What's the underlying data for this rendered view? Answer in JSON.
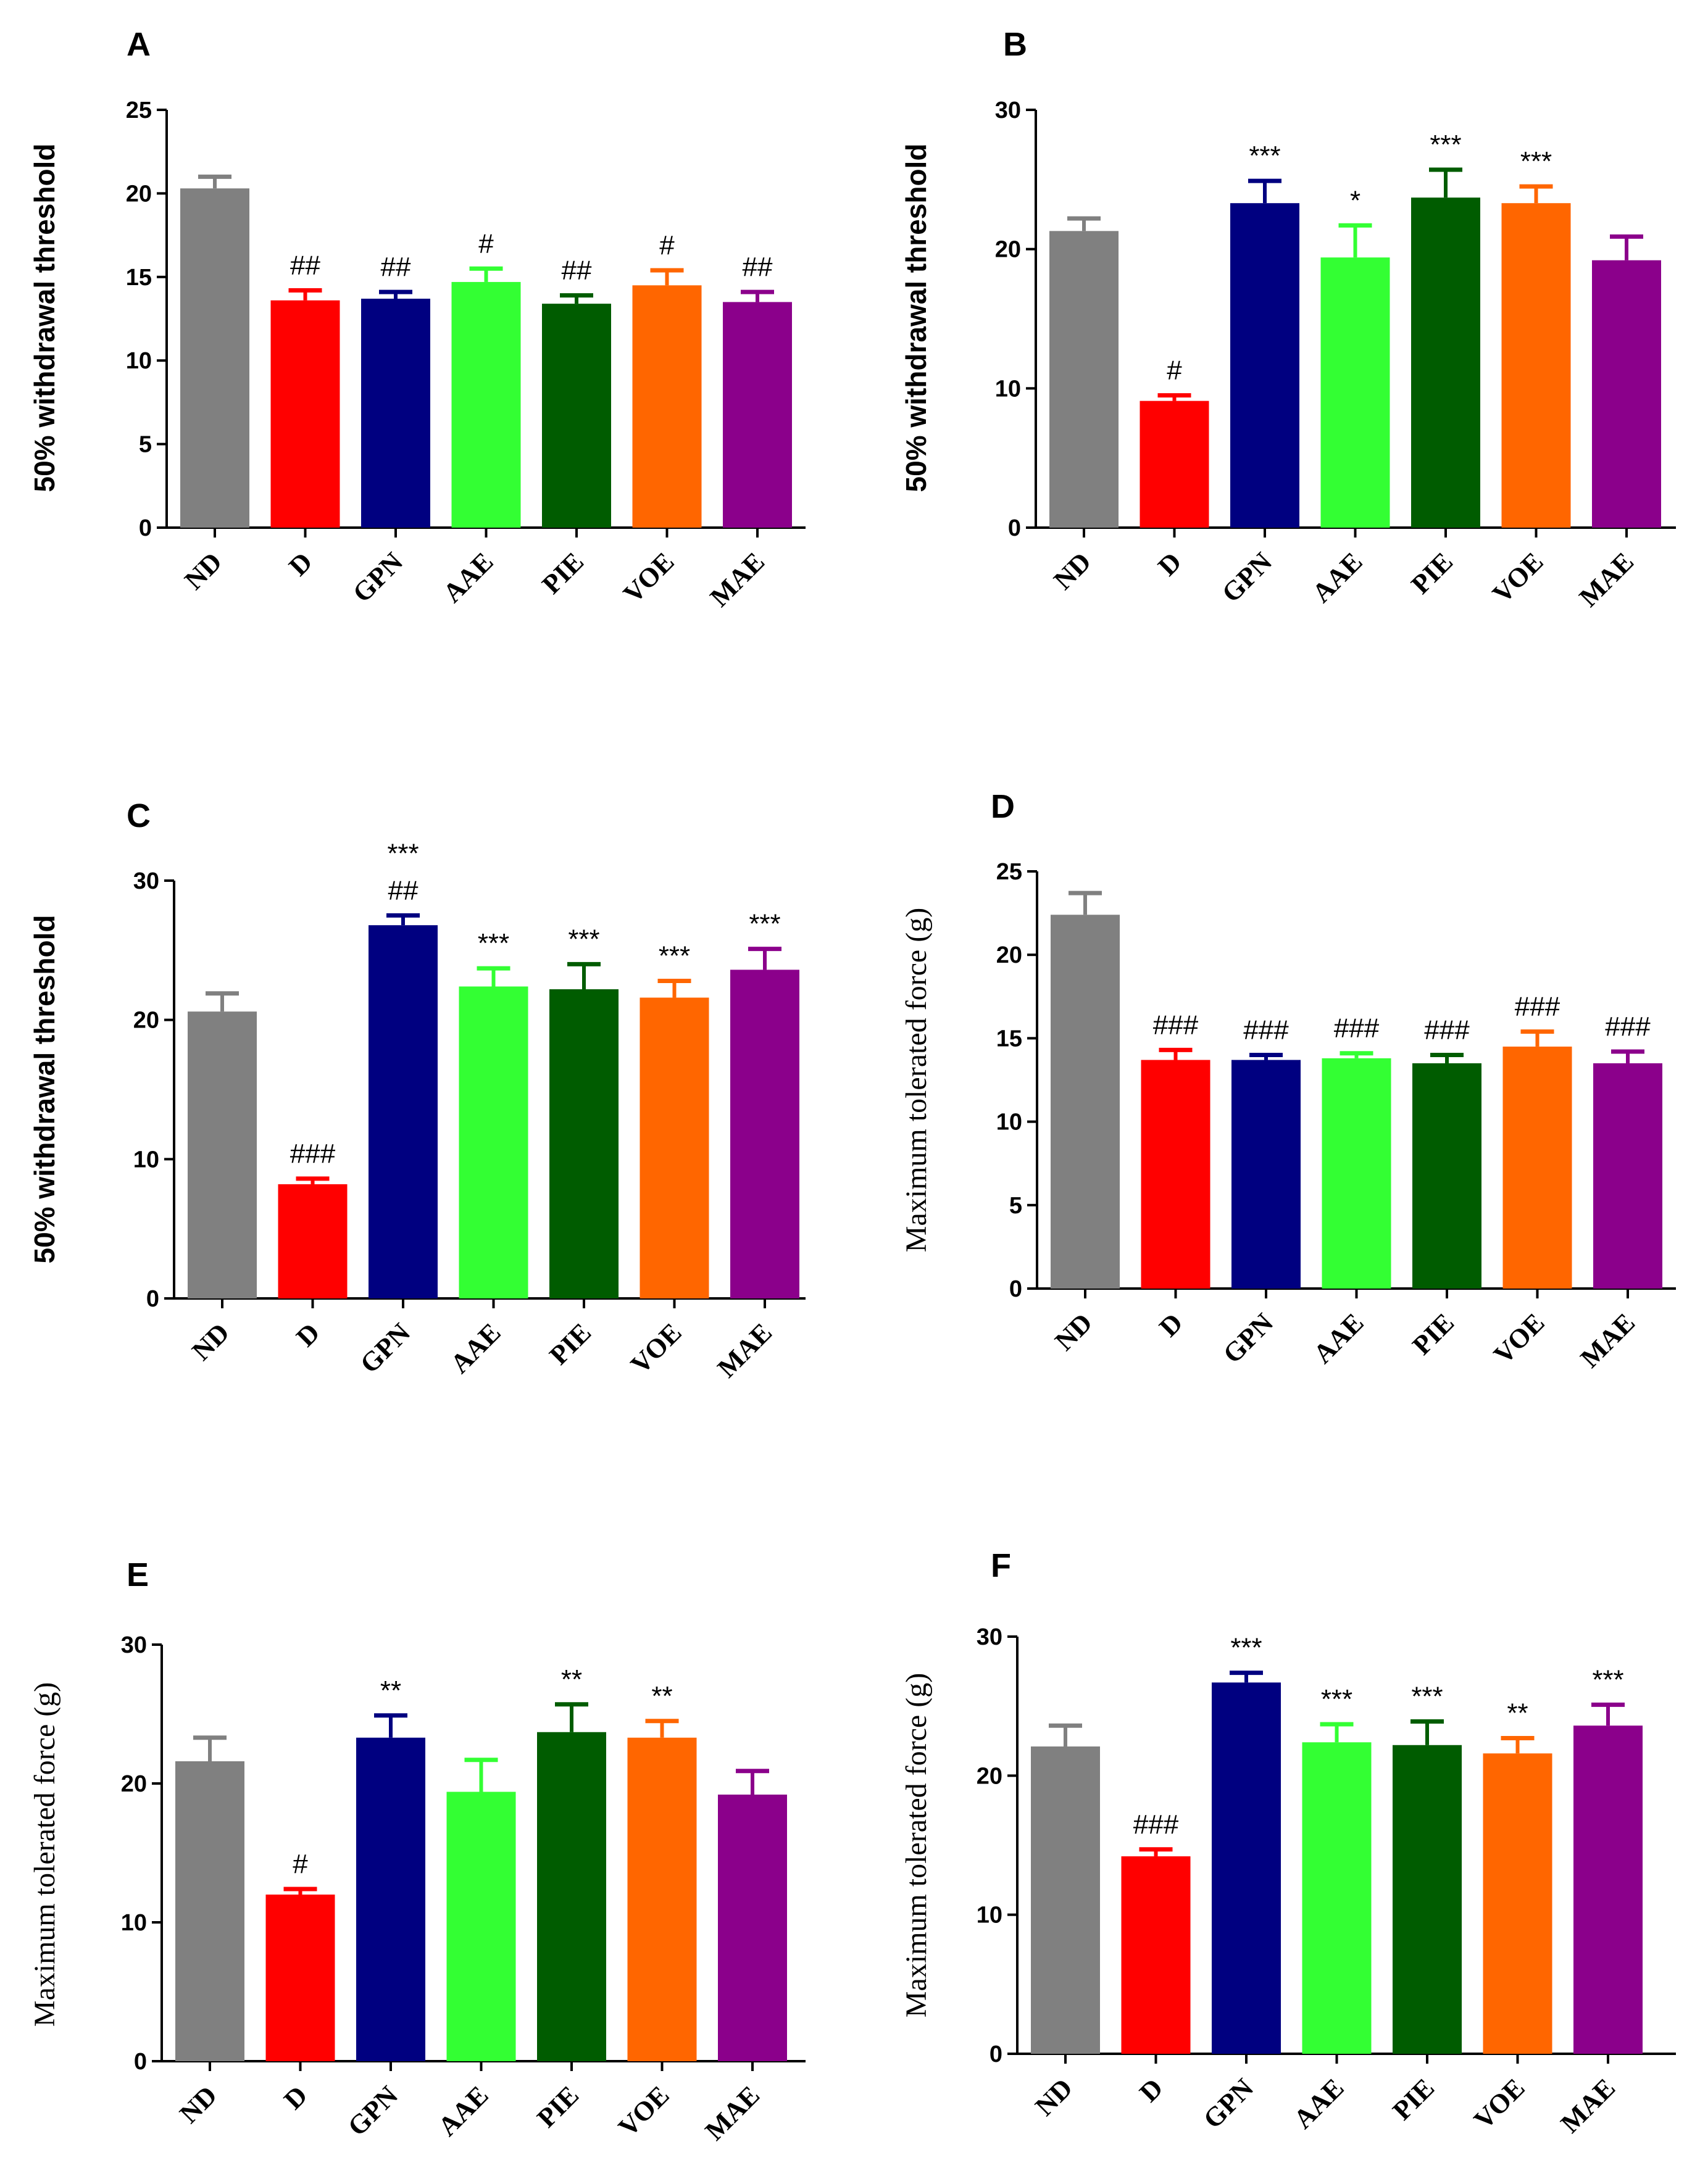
{
  "figure": {
    "description_free": true
  },
  "chart_data": [
    {
      "panel": "A",
      "type": "bar",
      "title": "",
      "xlabel": "",
      "ylabel": "50% withdrawal threshold",
      "ylim": [
        0,
        25
      ],
      "yticks": [
        0,
        5,
        10,
        15,
        20,
        25
      ],
      "categories": [
        "ND",
        "D",
        "GPN",
        "AAE",
        "PIE",
        "VOE",
        "MAE"
      ],
      "values": [
        20.3,
        13.6,
        13.7,
        14.7,
        13.4,
        14.5,
        13.5
      ],
      "errors": [
        0.7,
        0.6,
        0.4,
        0.8,
        0.5,
        0.9,
        0.6
      ],
      "colors": [
        "#808080",
        "#ff0000",
        "#000080",
        "#33ff33",
        "#005c00",
        "#ff6600",
        "#8b008b"
      ],
      "annotations": [
        [],
        [
          "##"
        ],
        [
          "##"
        ],
        [
          "#"
        ],
        [
          "##"
        ],
        [
          "#"
        ],
        [
          "##"
        ]
      ]
    },
    {
      "panel": "B",
      "type": "bar",
      "title": "",
      "xlabel": "",
      "ylabel": "50% withdrawal threshold",
      "ylim": [
        0,
        30
      ],
      "yticks": [
        0,
        10,
        20,
        30
      ],
      "categories": [
        "ND",
        "D",
        "GPN",
        "AAE",
        "PIE",
        "VOE",
        "MAE"
      ],
      "values": [
        21.3,
        9.1,
        23.3,
        19.4,
        23.7,
        23.3,
        19.2
      ],
      "errors": [
        0.9,
        0.4,
        1.6,
        2.3,
        2.0,
        1.2,
        1.7
      ],
      "colors": [
        "#808080",
        "#ff0000",
        "#000080",
        "#33ff33",
        "#005c00",
        "#ff6600",
        "#8b008b"
      ],
      "annotations": [
        [],
        [
          "#"
        ],
        [
          "***"
        ],
        [
          "*"
        ],
        [
          "***"
        ],
        [
          "***"
        ],
        []
      ]
    },
    {
      "panel": "C",
      "type": "bar",
      "title": "",
      "xlabel": "",
      "ylabel": "50% withdrawal threshold",
      "ylim": [
        0,
        30
      ],
      "yticks": [
        0,
        10,
        20,
        30
      ],
      "categories": [
        "ND",
        "D",
        "GPN",
        "AAE",
        "PIE",
        "VOE",
        "MAE"
      ],
      "values": [
        20.6,
        8.2,
        26.8,
        22.4,
        22.2,
        21.6,
        23.6
      ],
      "errors": [
        1.3,
        0.4,
        0.7,
        1.3,
        1.8,
        1.2,
        1.5
      ],
      "colors": [
        "#808080",
        "#ff0000",
        "#000080",
        "#33ff33",
        "#005c00",
        "#ff6600",
        "#8b008b"
      ],
      "annotations": [
        [],
        [
          "###"
        ],
        [
          "##",
          "***"
        ],
        [
          "***"
        ],
        [
          "***"
        ],
        [
          "***"
        ],
        [
          "***"
        ]
      ]
    },
    {
      "panel": "D",
      "type": "bar",
      "title": "",
      "xlabel": "",
      "ylabel": "Maximum tolerated force (g)",
      "ylim": [
        0,
        25
      ],
      "yticks": [
        0,
        5,
        10,
        15,
        20,
        25
      ],
      "categories": [
        "ND",
        "D",
        "GPN",
        "AAE",
        "PIE",
        "VOE",
        "MAE"
      ],
      "values": [
        22.4,
        13.7,
        13.7,
        13.8,
        13.5,
        14.5,
        13.5
      ],
      "errors": [
        1.3,
        0.6,
        0.3,
        0.3,
        0.5,
        0.9,
        0.7
      ],
      "colors": [
        "#808080",
        "#ff0000",
        "#000080",
        "#33ff33",
        "#005c00",
        "#ff6600",
        "#8b008b"
      ],
      "annotations": [
        [],
        [
          "###"
        ],
        [
          "###"
        ],
        [
          "###"
        ],
        [
          "###"
        ],
        [
          "###"
        ],
        [
          "###"
        ]
      ]
    },
    {
      "panel": "E",
      "type": "bar",
      "title": "",
      "xlabel": "",
      "ylabel": "Maximum tolerated force (g)",
      "ylim": [
        0,
        30
      ],
      "yticks": [
        0,
        10,
        20,
        30
      ],
      "categories": [
        "ND",
        "D",
        "GPN",
        "AAE",
        "PIE",
        "VOE",
        "MAE"
      ],
      "values": [
        21.6,
        12.0,
        23.3,
        19.4,
        23.7,
        23.3,
        19.2
      ],
      "errors": [
        1.7,
        0.4,
        1.6,
        2.3,
        2.0,
        1.2,
        1.7
      ],
      "colors": [
        "#808080",
        "#ff0000",
        "#000080",
        "#33ff33",
        "#005c00",
        "#ff6600",
        "#8b008b"
      ],
      "annotations": [
        [],
        [
          "#"
        ],
        [
          "**"
        ],
        [],
        [
          "**"
        ],
        [
          "**"
        ],
        []
      ]
    },
    {
      "panel": "F",
      "type": "bar",
      "title": "",
      "xlabel": "",
      "ylabel": "Maximum tolerated force (g)",
      "ylim": [
        0,
        30
      ],
      "yticks": [
        0,
        10,
        20,
        30
      ],
      "categories": [
        "ND",
        "D",
        "GPN",
        "AAE",
        "PIE",
        "VOE",
        "MAE"
      ],
      "values": [
        22.1,
        14.2,
        26.7,
        22.4,
        22.2,
        21.6,
        23.6
      ],
      "errors": [
        1.5,
        0.5,
        0.7,
        1.3,
        1.7,
        1.1,
        1.5
      ],
      "colors": [
        "#808080",
        "#ff0000",
        "#000080",
        "#33ff33",
        "#005c00",
        "#ff6600",
        "#8b008b"
      ],
      "annotations": [
        [],
        [
          "###"
        ],
        [
          "***"
        ],
        [
          "***"
        ],
        [
          "***"
        ],
        [
          "**"
        ],
        [
          "***"
        ]
      ]
    }
  ]
}
